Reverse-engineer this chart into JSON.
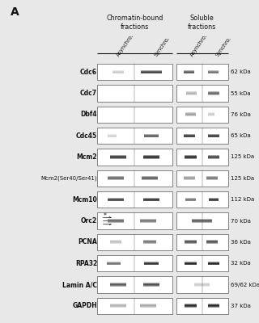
{
  "title_letter": "A",
  "col_headers": {
    "chromatin": "Chromatin-bound\nfractions",
    "soluble": "Soluble\nfractions"
  },
  "sub_headers": [
    "Asynchro.",
    "Synchro.",
    "Asynchro.",
    "Synchro."
  ],
  "rows": [
    {
      "label": "Cdc6",
      "kda": "62 kDa",
      "bold": true
    },
    {
      "label": "Cdc7",
      "kda": "55 kDa",
      "bold": true
    },
    {
      "label": "Dbf4",
      "kda": "76 kDa",
      "bold": true
    },
    {
      "label": "Cdc45",
      "kda": "65 kDa",
      "bold": true
    },
    {
      "label": "Mcm2",
      "kda": "125 kDa",
      "bold": true
    },
    {
      "label": "Mcm2(Ser40/Ser41)",
      "kda": "125 kDa",
      "bold": false
    },
    {
      "label": "Mcm10",
      "kda": "112 kDa",
      "bold": true
    },
    {
      "label": "Orc2",
      "kda": "70 kDa",
      "bold": true,
      "has_annotation": true
    },
    {
      "label": "PCNA",
      "kda": "36 kDa",
      "bold": true
    },
    {
      "label": "RPA32",
      "kda": "32 kDa",
      "bold": true
    },
    {
      "label": "Lamin A/C",
      "kda": "69/62 kDa",
      "bold": true
    },
    {
      "label": "GAPDH",
      "kda": "37 kDa",
      "bold": true
    }
  ],
  "bg_color": "#e8e8e8",
  "box_facecolor": "#ffffff",
  "box_edge_color": "#555555",
  "text_color": "#111111"
}
